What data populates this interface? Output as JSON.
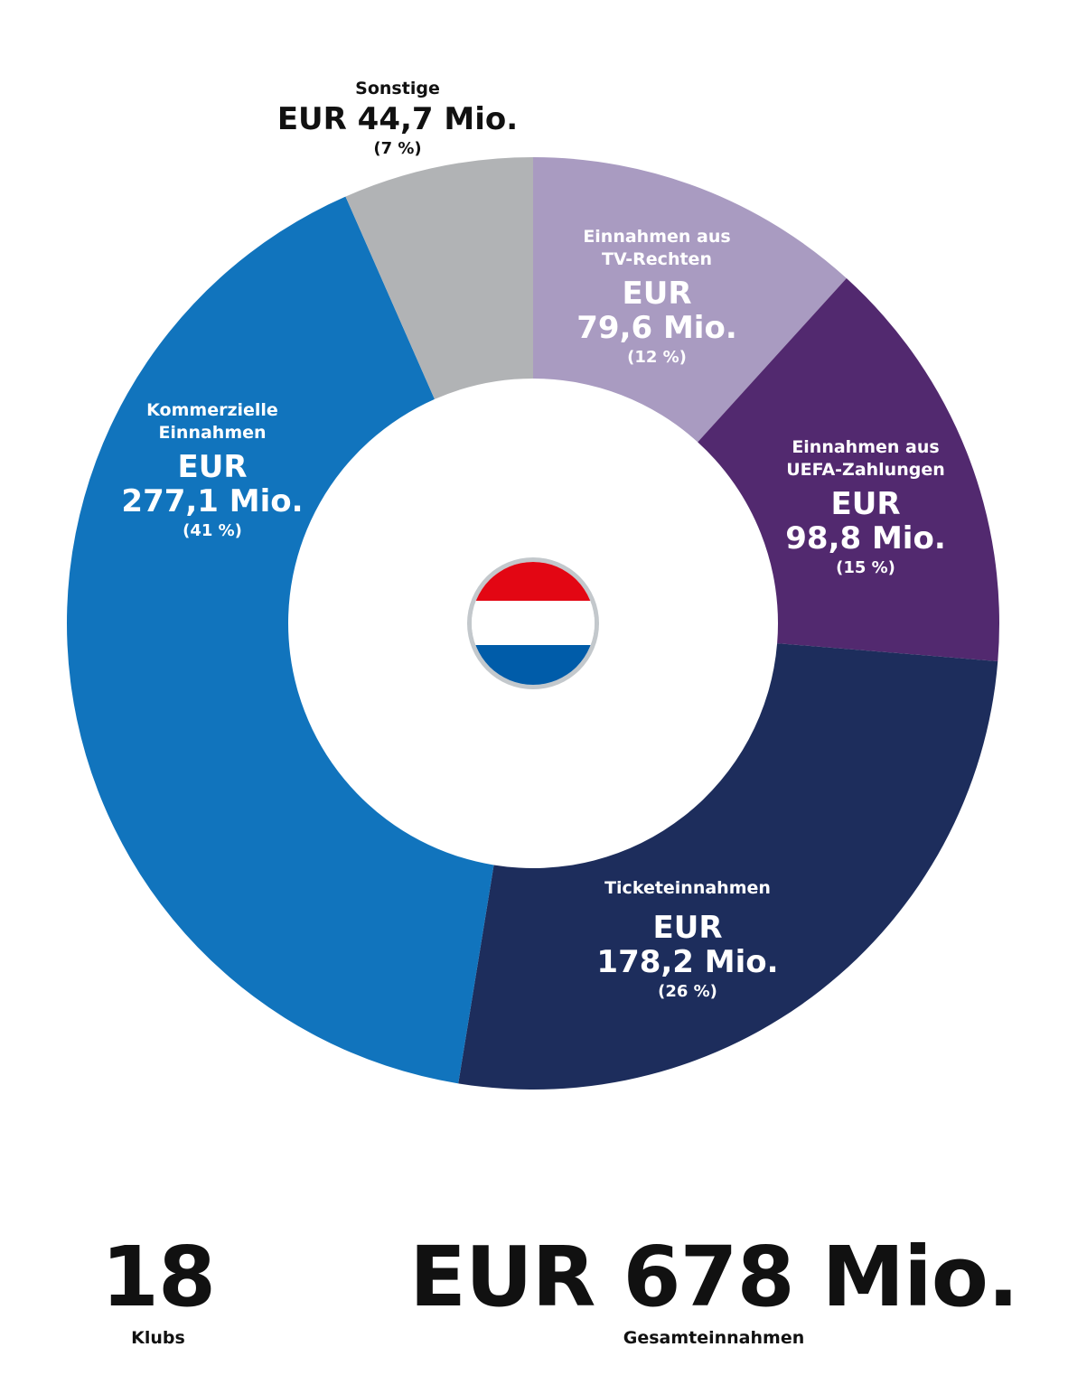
{
  "chart_data": {
    "type": "pie",
    "unit": "EUR Mio.",
    "slices": [
      {
        "category_lines": [
          "Einnahmen aus",
          "TV-Rechten"
        ],
        "value": 79.6,
        "value_lines": [
          "EUR",
          "79,6 Mio."
        ],
        "percent": "(12 %)",
        "color": "#a99bc1",
        "text_color": "#ffffff"
      },
      {
        "category_lines": [
          "Einnahmen aus",
          "UEFA-Zahlungen"
        ],
        "value": 98.8,
        "value_lines": [
          "EUR",
          "98,8 Mio."
        ],
        "percent": "(15 %)",
        "color": "#52296f",
        "text_color": "#ffffff"
      },
      {
        "category_lines": [
          "Ticketeinnahmen"
        ],
        "value": 178.2,
        "value_lines": [
          "EUR",
          "178,2 Mio."
        ],
        "percent": "(26 %)",
        "color": "#1d2d5c",
        "text_color": "#ffffff"
      },
      {
        "category_lines": [
          "Kommerzielle",
          "Einnahmen"
        ],
        "value": 277.1,
        "value_lines": [
          "EUR",
          "277,1 Mio."
        ],
        "percent": "(41 %)",
        "color": "#1174bd",
        "text_color": "#ffffff"
      },
      {
        "category_lines": [
          "Sonstige"
        ],
        "value": 44.7,
        "value_lines": [
          "EUR 44,7 Mio."
        ],
        "percent": "(7 %)",
        "color": "#b1b3b5",
        "text_color": "#111111"
      }
    ]
  },
  "center_icon": {
    "name": "netherlands-flag-icon",
    "colors": [
      "#e30613",
      "#ffffff",
      "#005ca9"
    ],
    "ring_color": "#c3c8cc"
  },
  "stats": {
    "clubs": {
      "value": "18",
      "label": "Klubs"
    },
    "total": {
      "value": "EUR 678 Mio.",
      "label": "Gesamteinnahmen"
    }
  }
}
